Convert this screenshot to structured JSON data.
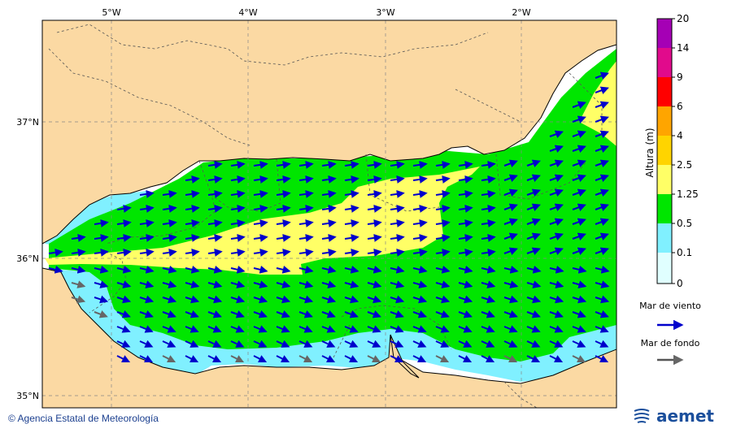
{
  "map": {
    "lon_labels": [
      "5°W",
      "4°W",
      "3°W",
      "2°W"
    ],
    "lat_labels": [
      "37°N",
      "36°N",
      "35°N"
    ],
    "land_color": "#fbd9a3",
    "sea_color": "#ffffff",
    "grid_style": "dashed"
  },
  "colorbar": {
    "title": "Altura (m)",
    "ticks": [
      "20",
      "14",
      "9",
      "6",
      "4",
      "2.5",
      "1.25",
      "0.5",
      "0.1",
      "0"
    ],
    "colors": [
      "#a500b5",
      "#e10a8c",
      "#ff0000",
      "#ff8c00",
      "#ffb400",
      "#ffea00",
      "#ffff66",
      "#00e600",
      "#80f0ff",
      "#e0ffff"
    ]
  },
  "legend": {
    "wind_sea_label": "Mar de viento",
    "wind_sea_color": "#0000cc",
    "swell_label": "Mar de fondo",
    "swell_color": "#555555"
  },
  "footer": {
    "credit": "© Agencia Estatal de Meteorología",
    "logo_text": "aemet"
  }
}
